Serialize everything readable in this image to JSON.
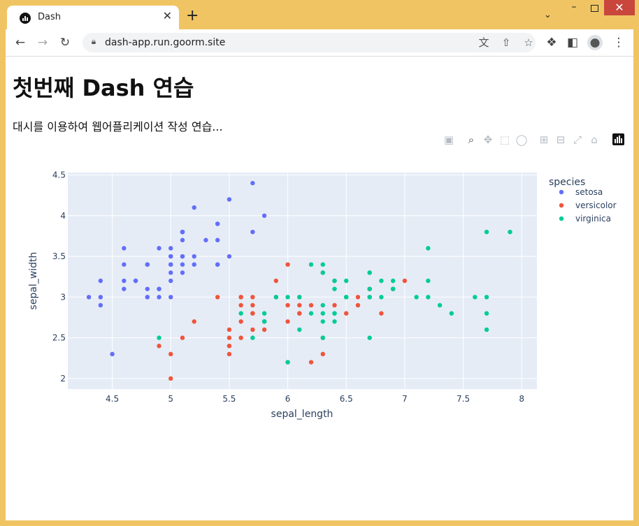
{
  "browser": {
    "tab_title": "Dash",
    "tab_close": "✕",
    "new_tab": "+",
    "url": "dash-app.run.goorm.site",
    "icons": [
      "back-icon",
      "forward-icon",
      "reload-icon",
      "lock-icon",
      "translate-icon",
      "share-icon",
      "star-icon",
      "extensions-icon",
      "side-panel-icon",
      "profile-icon",
      "menu-icon"
    ]
  },
  "page": {
    "heading": "첫번째 Dash 연습",
    "lead": "대시를 이용하여 웹어플리케이션 작성 연습..."
  },
  "modebar": {
    "icons": [
      "camera-icon",
      "zoom-icon",
      "pan-icon",
      "box-select-icon",
      "lasso-icon",
      "zoom-in-icon",
      "zoom-out-icon",
      "autoscale-icon",
      "reset-axes-icon",
      "plotly-logo-icon"
    ]
  },
  "chart_data": {
    "type": "scatter",
    "xlabel": "sepal_length",
    "ylabel": "sepal_width",
    "xlim": [
      4.12,
      8.13
    ],
    "ylim": [
      1.87,
      4.53
    ],
    "x_ticks": [
      "4.5",
      "5",
      "5.5",
      "6",
      "6.5",
      "7",
      "7.5",
      "8"
    ],
    "y_ticks": [
      "2",
      "2.5",
      "3",
      "3.5",
      "4",
      "4.5"
    ],
    "grid": true,
    "legend_title": "species",
    "legend_position": "top-right",
    "colors": {
      "setosa": "#636efa",
      "versicolor": "#ef553b",
      "virginica": "#00cc96"
    },
    "series": [
      {
        "name": "setosa",
        "points": [
          [
            5.1,
            3.5
          ],
          [
            4.9,
            3.0
          ],
          [
            4.7,
            3.2
          ],
          [
            4.6,
            3.1
          ],
          [
            5.0,
            3.6
          ],
          [
            5.4,
            3.9
          ],
          [
            4.6,
            3.4
          ],
          [
            5.0,
            3.4
          ],
          [
            4.4,
            2.9
          ],
          [
            4.9,
            3.1
          ],
          [
            5.4,
            3.7
          ],
          [
            4.8,
            3.4
          ],
          [
            4.8,
            3.0
          ],
          [
            4.3,
            3.0
          ],
          [
            5.8,
            4.0
          ],
          [
            5.7,
            4.4
          ],
          [
            5.4,
            3.9
          ],
          [
            5.1,
            3.5
          ],
          [
            5.7,
            3.8
          ],
          [
            5.1,
            3.8
          ],
          [
            5.4,
            3.4
          ],
          [
            5.1,
            3.7
          ],
          [
            4.6,
            3.6
          ],
          [
            5.1,
            3.3
          ],
          [
            4.8,
            3.4
          ],
          [
            5.0,
            3.0
          ],
          [
            5.0,
            3.4
          ],
          [
            5.2,
            3.5
          ],
          [
            5.2,
            3.4
          ],
          [
            4.7,
            3.2
          ],
          [
            4.8,
            3.1
          ],
          [
            5.4,
            3.4
          ],
          [
            5.2,
            4.1
          ],
          [
            5.5,
            4.2
          ],
          [
            4.9,
            3.1
          ],
          [
            5.0,
            3.2
          ],
          [
            5.5,
            3.5
          ],
          [
            4.9,
            3.6
          ],
          [
            4.4,
            3.0
          ],
          [
            5.1,
            3.4
          ],
          [
            5.0,
            3.5
          ],
          [
            4.5,
            2.3
          ],
          [
            4.4,
            3.2
          ],
          [
            5.0,
            3.5
          ],
          [
            5.1,
            3.8
          ],
          [
            4.8,
            3.0
          ],
          [
            5.1,
            3.8
          ],
          [
            4.6,
            3.2
          ],
          [
            5.3,
            3.7
          ],
          [
            5.0,
            3.3
          ]
        ]
      },
      {
        "name": "versicolor",
        "points": [
          [
            7.0,
            3.2
          ],
          [
            6.4,
            3.2
          ],
          [
            6.9,
            3.1
          ],
          [
            5.5,
            2.3
          ],
          [
            6.5,
            2.8
          ],
          [
            5.7,
            2.8
          ],
          [
            6.3,
            3.3
          ],
          [
            4.9,
            2.4
          ],
          [
            6.6,
            2.9
          ],
          [
            5.2,
            2.7
          ],
          [
            5.0,
            2.0
          ],
          [
            5.9,
            3.0
          ],
          [
            6.0,
            2.2
          ],
          [
            6.1,
            2.9
          ],
          [
            5.6,
            2.9
          ],
          [
            6.7,
            3.1
          ],
          [
            5.6,
            3.0
          ],
          [
            5.8,
            2.7
          ],
          [
            6.2,
            2.2
          ],
          [
            5.6,
            2.5
          ],
          [
            5.9,
            3.2
          ],
          [
            6.1,
            2.8
          ],
          [
            6.3,
            2.5
          ],
          [
            6.1,
            2.8
          ],
          [
            6.4,
            2.9
          ],
          [
            6.6,
            3.0
          ],
          [
            6.8,
            2.8
          ],
          [
            6.7,
            3.0
          ],
          [
            6.0,
            2.9
          ],
          [
            5.7,
            2.6
          ],
          [
            5.5,
            2.4
          ],
          [
            5.5,
            2.4
          ],
          [
            5.8,
            2.7
          ],
          [
            6.0,
            2.7
          ],
          [
            5.4,
            3.0
          ],
          [
            6.0,
            3.4
          ],
          [
            6.7,
            3.1
          ],
          [
            6.3,
            2.3
          ],
          [
            5.6,
            3.0
          ],
          [
            5.5,
            2.5
          ],
          [
            5.5,
            2.6
          ],
          [
            6.1,
            3.0
          ],
          [
            5.8,
            2.6
          ],
          [
            5.0,
            2.3
          ],
          [
            5.6,
            2.7
          ],
          [
            5.7,
            3.0
          ],
          [
            5.7,
            2.9
          ],
          [
            6.2,
            2.9
          ],
          [
            5.1,
            2.5
          ],
          [
            5.7,
            2.8
          ]
        ]
      },
      {
        "name": "virginica",
        "points": [
          [
            6.3,
            3.3
          ],
          [
            5.8,
            2.7
          ],
          [
            7.1,
            3.0
          ],
          [
            6.3,
            2.9
          ],
          [
            6.5,
            3.0
          ],
          [
            7.6,
            3.0
          ],
          [
            4.9,
            2.5
          ],
          [
            7.3,
            2.9
          ],
          [
            6.7,
            2.5
          ],
          [
            7.2,
            3.6
          ],
          [
            6.5,
            3.2
          ],
          [
            6.4,
            2.7
          ],
          [
            6.8,
            3.0
          ],
          [
            5.7,
            2.5
          ],
          [
            5.8,
            2.8
          ],
          [
            6.4,
            3.2
          ],
          [
            6.5,
            3.0
          ],
          [
            7.7,
            3.8
          ],
          [
            7.7,
            2.6
          ],
          [
            6.0,
            2.2
          ],
          [
            6.9,
            3.2
          ],
          [
            5.6,
            2.8
          ],
          [
            7.7,
            2.8
          ],
          [
            6.3,
            2.7
          ],
          [
            6.7,
            3.3
          ],
          [
            7.2,
            3.2
          ],
          [
            6.2,
            2.8
          ],
          [
            6.1,
            3.0
          ],
          [
            6.4,
            2.8
          ],
          [
            7.2,
            3.0
          ],
          [
            7.4,
            2.8
          ],
          [
            7.9,
            3.8
          ],
          [
            6.4,
            2.8
          ],
          [
            6.3,
            2.8
          ],
          [
            6.1,
            2.6
          ],
          [
            7.7,
            3.0
          ],
          [
            6.3,
            3.4
          ],
          [
            6.4,
            3.1
          ],
          [
            6.0,
            3.0
          ],
          [
            6.9,
            3.1
          ],
          [
            6.7,
            3.1
          ],
          [
            6.9,
            3.1
          ],
          [
            5.8,
            2.7
          ],
          [
            6.8,
            3.2
          ],
          [
            6.7,
            3.3
          ],
          [
            6.7,
            3.0
          ],
          [
            6.3,
            2.5
          ],
          [
            6.5,
            3.0
          ],
          [
            6.2,
            3.4
          ],
          [
            5.9,
            3.0
          ]
        ]
      }
    ]
  }
}
